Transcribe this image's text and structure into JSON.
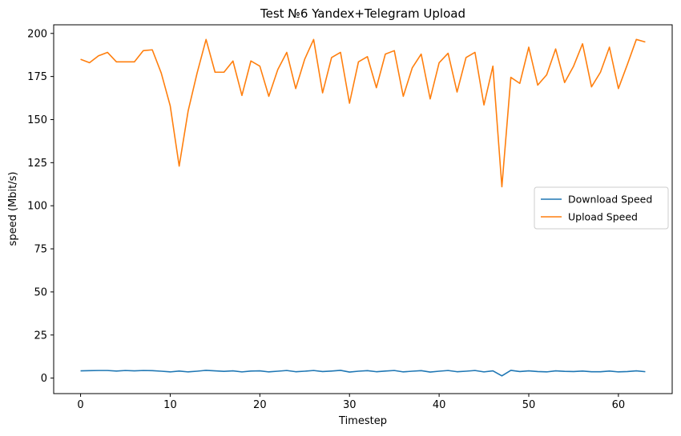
{
  "chart_data": {
    "type": "line",
    "title": "Test №6 Yandex+Telegram Upload",
    "xlabel": "Timestep",
    "ylabel": "speed (Mbit/s)",
    "xlim": [
      -3,
      66
    ],
    "ylim": [
      -9,
      205
    ],
    "xticks": [
      0,
      10,
      20,
      30,
      40,
      50,
      60
    ],
    "yticks": [
      0,
      25,
      50,
      75,
      100,
      125,
      150,
      175,
      200
    ],
    "grid": false,
    "legend_position": "center-right",
    "x": [
      0,
      1,
      2,
      3,
      4,
      5,
      6,
      7,
      8,
      9,
      10,
      11,
      12,
      13,
      14,
      15,
      16,
      17,
      18,
      19,
      20,
      21,
      22,
      23,
      24,
      25,
      26,
      27,
      28,
      29,
      30,
      31,
      32,
      33,
      34,
      35,
      36,
      37,
      38,
      39,
      40,
      41,
      42,
      43,
      44,
      45,
      46,
      47,
      48,
      49,
      50,
      51,
      52,
      53,
      54,
      55,
      56,
      57,
      58,
      59,
      60,
      61,
      62,
      63
    ],
    "series": [
      {
        "name": "Download Speed",
        "color": "#1f77b4",
        "values": [
          4.2,
          4.3,
          4.4,
          4.4,
          4.1,
          4.4,
          4.2,
          4.4,
          4.3,
          4.0,
          3.6,
          4.1,
          3.6,
          4.0,
          4.5,
          4.2,
          3.9,
          4.2,
          3.6,
          4.1,
          4.2,
          3.6,
          4.0,
          4.4,
          3.7,
          4.0,
          4.4,
          3.8,
          4.1,
          4.5,
          3.5,
          4.0,
          4.3,
          3.7,
          4.1,
          4.4,
          3.6,
          4.0,
          4.3,
          3.5,
          4.0,
          4.4,
          3.7,
          4.0,
          4.4,
          3.6,
          4.2,
          1.3,
          4.5,
          3.8,
          4.2,
          3.8,
          3.6,
          4.2,
          3.9,
          3.8,
          4.1,
          3.7,
          3.7,
          4.1,
          3.6,
          3.8,
          4.2,
          3.7
        ]
      },
      {
        "name": "Upload Speed",
        "color": "#ff7f0e",
        "values": [
          185,
          183,
          187,
          189,
          183.5,
          183.5,
          183.5,
          190,
          190.5,
          177,
          158,
          123,
          155,
          177,
          196.5,
          177.5,
          177.5,
          184,
          164,
          184,
          181,
          163.5,
          179,
          189,
          168,
          185,
          196.5,
          165.5,
          186,
          189,
          159.5,
          183.5,
          186.5,
          168.5,
          188,
          190,
          163.5,
          180,
          188,
          162,
          183,
          188.5,
          166,
          186,
          189,
          158.5,
          181,
          111,
          174.5,
          171,
          192,
          170,
          176,
          191,
          171.5,
          181,
          194,
          169,
          177.5,
          192,
          168,
          182,
          196.5,
          195
        ]
      }
    ]
  }
}
